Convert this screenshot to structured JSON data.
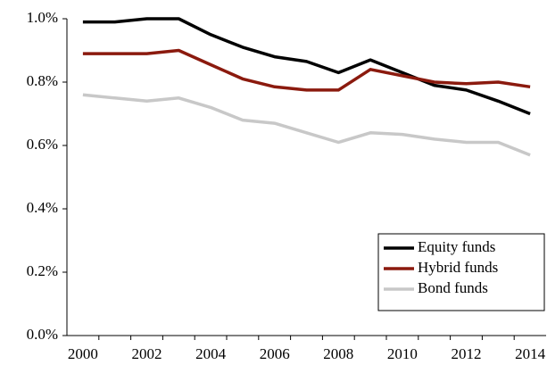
{
  "chart_data": {
    "type": "line",
    "categories": [
      "2000",
      null,
      "2002",
      null,
      "2004",
      null,
      "2006",
      null,
      "2008",
      null,
      "2010",
      null,
      "2012",
      null,
      "2014"
    ],
    "series": [
      {
        "name": "Equity funds",
        "color": "#000000",
        "values": [
          0.99,
          0.99,
          1.0,
          1.0,
          0.95,
          0.91,
          0.88,
          0.865,
          0.83,
          0.87,
          0.83,
          0.79,
          0.775,
          0.74,
          0.7
        ]
      },
      {
        "name": "Hybrid funds",
        "color": "#8b1a0e",
        "values": [
          0.89,
          0.89,
          0.89,
          0.9,
          0.855,
          0.81,
          0.785,
          0.775,
          0.775,
          0.84,
          0.82,
          0.8,
          0.795,
          0.8,
          0.785
        ]
      },
      {
        "name": "Bond funds",
        "color": "#c8c8c8",
        "values": [
          0.76,
          0.75,
          0.74,
          0.75,
          0.72,
          0.68,
          0.67,
          0.64,
          0.61,
          0.64,
          0.635,
          0.62,
          0.61,
          0.61,
          0.57
        ]
      }
    ],
    "ylim": [
      0,
      1.0
    ],
    "yticks": [
      {
        "value": 0,
        "label": "0.0%"
      },
      {
        "value": 0.2,
        "label": "0.2%"
      },
      {
        "value": 0.4,
        "label": "0.4%"
      },
      {
        "value": 0.6,
        "label": "0.6%"
      },
      {
        "value": 0.8,
        "label": "0.8%"
      },
      {
        "value": 1.0,
        "label": "1.0%"
      }
    ],
    "grid": false,
    "legend": "lower-right"
  }
}
